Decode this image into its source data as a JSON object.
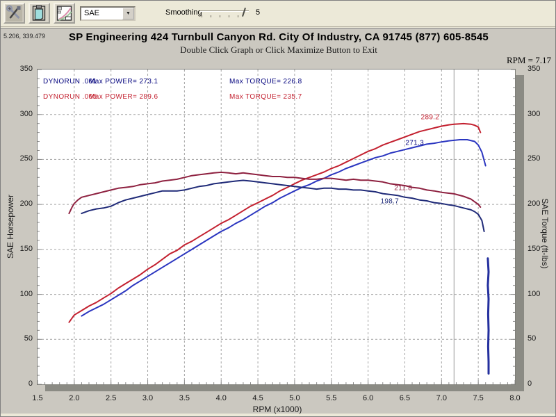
{
  "toolbar": {
    "buttons": [
      {
        "name": "tools",
        "icon": "tools-icon"
      },
      {
        "name": "clipboard",
        "icon": "clipboard-icon"
      },
      {
        "name": "graph",
        "icon": "graph-icon"
      }
    ],
    "mode_select": {
      "value": "SAE"
    },
    "smoothing": {
      "label": "Smoothing",
      "value": "5"
    }
  },
  "header": {
    "cursor_coords": "5.206, 339.479",
    "subtitle": "Double Click Graph or Click Maximize Button to Exit",
    "rpm_readout": "RPM = 7.17"
  },
  "chart_data": {
    "type": "line",
    "title": "SP Engineering 424 Turnbull Canyon Rd. City Of Industry, CA 91745 (877) 605-8545",
    "xlabel": "RPM (x1000)",
    "ylabel_left": "SAE Horsepower",
    "ylabel_right": "SAE Torque (ft-lbs)",
    "xlim": [
      1.5,
      8.0
    ],
    "ylim": [
      0,
      350
    ],
    "x_ticks": [
      1.5,
      2.0,
      2.5,
      3.0,
      3.5,
      4.0,
      4.5,
      5.0,
      5.5,
      6.0,
      6.5,
      7.0,
      7.5,
      8.0
    ],
    "y_ticks": [
      0,
      50,
      100,
      150,
      200,
      250,
      300,
      350
    ],
    "grid": true,
    "cursor_rpm": 7.17,
    "legend_position": "top-left-inside",
    "legend": [
      {
        "run": "DYNORUN .001",
        "max_power_label": "Max POWER= 273.1",
        "max_torque_label": "Max TORQUE= 226.8",
        "max_power": 273.1,
        "max_torque": 226.8,
        "color": "#00007d"
      },
      {
        "run": "DYNORUN .005",
        "max_power_label": "Max POWER= 289.6",
        "max_torque_label": "Max TORQUE= 235.7",
        "max_power": 289.6,
        "max_torque": 235.7,
        "color": "#c3202f"
      }
    ],
    "cursor_labels": [
      {
        "text": "289.2",
        "rpm": 6.97,
        "value": 297,
        "color": "#c3202f"
      },
      {
        "text": "271.3",
        "rpm": 6.76,
        "value": 268,
        "color": "#00007d"
      },
      {
        "text": "211.8",
        "rpm": 6.6,
        "value": 218,
        "color": "#8e2140"
      },
      {
        "text": "198.7",
        "rpm": 6.42,
        "value": 203,
        "color": "#1f2a78"
      }
    ],
    "series": [
      {
        "name": "dynorun-005-power",
        "color": "#c3202f",
        "width": 2,
        "points": [
          [
            1.93,
            69
          ],
          [
            2.0,
            77
          ],
          [
            2.1,
            82
          ],
          [
            2.2,
            87
          ],
          [
            2.3,
            91
          ],
          [
            2.4,
            96
          ],
          [
            2.5,
            101
          ],
          [
            2.6,
            107
          ],
          [
            2.7,
            112
          ],
          [
            2.8,
            117
          ],
          [
            2.9,
            122
          ],
          [
            3.0,
            128
          ],
          [
            3.1,
            133
          ],
          [
            3.2,
            139
          ],
          [
            3.3,
            145
          ],
          [
            3.4,
            149
          ],
          [
            3.5,
            155
          ],
          [
            3.6,
            159
          ],
          [
            3.7,
            164
          ],
          [
            3.8,
            169
          ],
          [
            3.9,
            174
          ],
          [
            4.0,
            179
          ],
          [
            4.1,
            183
          ],
          [
            4.2,
            188
          ],
          [
            4.3,
            193
          ],
          [
            4.4,
            198
          ],
          [
            4.5,
            202
          ],
          [
            4.6,
            206
          ],
          [
            4.7,
            210
          ],
          [
            4.8,
            215
          ],
          [
            4.9,
            219
          ],
          [
            5.0,
            223
          ],
          [
            5.1,
            227
          ],
          [
            5.2,
            230
          ],
          [
            5.3,
            233
          ],
          [
            5.4,
            236
          ],
          [
            5.5,
            240
          ],
          [
            5.6,
            243
          ],
          [
            5.7,
            247
          ],
          [
            5.8,
            251
          ],
          [
            5.9,
            255
          ],
          [
            6.0,
            259
          ],
          [
            6.1,
            262
          ],
          [
            6.2,
            266
          ],
          [
            6.3,
            269
          ],
          [
            6.4,
            272
          ],
          [
            6.5,
            275
          ],
          [
            6.6,
            278
          ],
          [
            6.7,
            281
          ],
          [
            6.8,
            283
          ],
          [
            6.9,
            285
          ],
          [
            7.0,
            287
          ],
          [
            7.1,
            288.5
          ],
          [
            7.17,
            289.2
          ],
          [
            7.3,
            289.8
          ],
          [
            7.4,
            289.2
          ],
          [
            7.45,
            288
          ],
          [
            7.5,
            286
          ],
          [
            7.52,
            282
          ],
          [
            7.53,
            280
          ]
        ]
      },
      {
        "name": "dynorun-001-power",
        "color": "#2a35c0",
        "width": 2,
        "points": [
          [
            2.1,
            76
          ],
          [
            2.2,
            81
          ],
          [
            2.3,
            85
          ],
          [
            2.4,
            89
          ],
          [
            2.5,
            94
          ],
          [
            2.6,
            99
          ],
          [
            2.7,
            104
          ],
          [
            2.8,
            110
          ],
          [
            2.9,
            115
          ],
          [
            3.0,
            120
          ],
          [
            3.1,
            125
          ],
          [
            3.2,
            130
          ],
          [
            3.3,
            135
          ],
          [
            3.4,
            140
          ],
          [
            3.5,
            145
          ],
          [
            3.6,
            150
          ],
          [
            3.7,
            155
          ],
          [
            3.8,
            160
          ],
          [
            3.9,
            165
          ],
          [
            4.0,
            170
          ],
          [
            4.1,
            174
          ],
          [
            4.2,
            179
          ],
          [
            4.3,
            183
          ],
          [
            4.4,
            188
          ],
          [
            4.5,
            193
          ],
          [
            4.6,
            198
          ],
          [
            4.7,
            202
          ],
          [
            4.8,
            207
          ],
          [
            4.9,
            211
          ],
          [
            5.0,
            215
          ],
          [
            5.1,
            219
          ],
          [
            5.2,
            222
          ],
          [
            5.3,
            226
          ],
          [
            5.4,
            229
          ],
          [
            5.5,
            233
          ],
          [
            5.6,
            236
          ],
          [
            5.7,
            240
          ],
          [
            5.8,
            243
          ],
          [
            5.9,
            246
          ],
          [
            6.0,
            249
          ],
          [
            6.1,
            252
          ],
          [
            6.2,
            254
          ],
          [
            6.3,
            257
          ],
          [
            6.4,
            259
          ],
          [
            6.5,
            261
          ],
          [
            6.6,
            263
          ],
          [
            6.7,
            265
          ],
          [
            6.8,
            267
          ],
          [
            6.9,
            268
          ],
          [
            7.0,
            269.5
          ],
          [
            7.1,
            270.7
          ],
          [
            7.17,
            271.3
          ],
          [
            7.25,
            272
          ],
          [
            7.35,
            272
          ],
          [
            7.45,
            270
          ],
          [
            7.5,
            266
          ],
          [
            7.55,
            258
          ],
          [
            7.6,
            243
          ]
        ]
      },
      {
        "name": "dynorun-005-torque",
        "color": "#8e2140",
        "width": 2,
        "points": [
          [
            1.93,
            190
          ],
          [
            1.97,
            197
          ],
          [
            2.0,
            201
          ],
          [
            2.05,
            205
          ],
          [
            2.1,
            208
          ],
          [
            2.2,
            210
          ],
          [
            2.3,
            212
          ],
          [
            2.4,
            214
          ],
          [
            2.5,
            216
          ],
          [
            2.6,
            218
          ],
          [
            2.7,
            219
          ],
          [
            2.8,
            220
          ],
          [
            2.9,
            222
          ],
          [
            3.0,
            223
          ],
          [
            3.1,
            224
          ],
          [
            3.2,
            226
          ],
          [
            3.3,
            227
          ],
          [
            3.4,
            228
          ],
          [
            3.5,
            230
          ],
          [
            3.6,
            232
          ],
          [
            3.7,
            233
          ],
          [
            3.8,
            234
          ],
          [
            3.9,
            235
          ],
          [
            4.0,
            235.7
          ],
          [
            4.1,
            235
          ],
          [
            4.2,
            234
          ],
          [
            4.3,
            235
          ],
          [
            4.4,
            234
          ],
          [
            4.5,
            233
          ],
          [
            4.6,
            232
          ],
          [
            4.7,
            231
          ],
          [
            4.8,
            231
          ],
          [
            4.9,
            230
          ],
          [
            5.0,
            230
          ],
          [
            5.1,
            229
          ],
          [
            5.2,
            228
          ],
          [
            5.3,
            228
          ],
          [
            5.4,
            229
          ],
          [
            5.5,
            229
          ],
          [
            5.6,
            228
          ],
          [
            5.7,
            227
          ],
          [
            5.8,
            228
          ],
          [
            5.9,
            227
          ],
          [
            6.0,
            227
          ],
          [
            6.1,
            226
          ],
          [
            6.2,
            225
          ],
          [
            6.3,
            223
          ],
          [
            6.4,
            222
          ],
          [
            6.5,
            221
          ],
          [
            6.6,
            219
          ],
          [
            6.7,
            218
          ],
          [
            6.8,
            216
          ],
          [
            6.9,
            215
          ],
          [
            7.0,
            213.5
          ],
          [
            7.1,
            212.5
          ],
          [
            7.17,
            211.8
          ],
          [
            7.3,
            209
          ],
          [
            7.4,
            206
          ],
          [
            7.45,
            203
          ],
          [
            7.5,
            200
          ],
          [
            7.53,
            197
          ]
        ]
      },
      {
        "name": "dynorun-001-torque",
        "color": "#1f2a78",
        "width": 2,
        "points": [
          [
            2.1,
            190
          ],
          [
            2.2,
            193
          ],
          [
            2.3,
            195
          ],
          [
            2.4,
            196
          ],
          [
            2.5,
            198
          ],
          [
            2.6,
            202
          ],
          [
            2.7,
            205
          ],
          [
            2.8,
            207
          ],
          [
            2.9,
            209
          ],
          [
            3.0,
            211
          ],
          [
            3.1,
            213
          ],
          [
            3.2,
            215
          ],
          [
            3.3,
            215
          ],
          [
            3.4,
            215
          ],
          [
            3.5,
            216
          ],
          [
            3.6,
            218
          ],
          [
            3.7,
            220
          ],
          [
            3.8,
            221
          ],
          [
            3.9,
            223
          ],
          [
            4.0,
            224
          ],
          [
            4.1,
            225
          ],
          [
            4.2,
            226
          ],
          [
            4.3,
            226.8
          ],
          [
            4.4,
            226
          ],
          [
            4.5,
            225
          ],
          [
            4.6,
            224
          ],
          [
            4.7,
            223
          ],
          [
            4.8,
            222
          ],
          [
            4.9,
            221
          ],
          [
            5.0,
            220
          ],
          [
            5.1,
            219
          ],
          [
            5.2,
            218
          ],
          [
            5.3,
            217
          ],
          [
            5.4,
            218
          ],
          [
            5.5,
            218
          ],
          [
            5.6,
            217
          ],
          [
            5.7,
            217
          ],
          [
            5.8,
            216
          ],
          [
            5.9,
            216
          ],
          [
            6.0,
            215
          ],
          [
            6.1,
            214
          ],
          [
            6.2,
            212
          ],
          [
            6.3,
            211
          ],
          [
            6.4,
            210
          ],
          [
            6.5,
            208
          ],
          [
            6.6,
            207
          ],
          [
            6.7,
            205
          ],
          [
            6.8,
            204
          ],
          [
            6.9,
            202
          ],
          [
            7.0,
            201
          ],
          [
            7.1,
            199.5
          ],
          [
            7.17,
            198.7
          ],
          [
            7.3,
            196
          ],
          [
            7.4,
            194
          ],
          [
            7.45,
            192
          ],
          [
            7.5,
            189
          ],
          [
            7.55,
            182
          ],
          [
            7.58,
            170
          ]
        ]
      },
      {
        "name": "dynorun-001-run-end-spike",
        "color": "#232f9e",
        "width": 3,
        "points": [
          [
            7.63,
            140
          ],
          [
            7.64,
            125
          ],
          [
            7.63,
            110
          ],
          [
            7.64,
            95
          ],
          [
            7.635,
            78
          ],
          [
            7.64,
            60
          ],
          [
            7.635,
            42
          ],
          [
            7.64,
            25
          ],
          [
            7.64,
            12
          ]
        ]
      }
    ],
    "colors": {
      "grid": "#a3a3a3",
      "cursor_line": "#9a9a9a",
      "plot_bg": "#ffffff",
      "panel_bg": "#cbc8c0",
      "window_bg": "#ece9d8",
      "shadow": "#8b8b84"
    }
  }
}
